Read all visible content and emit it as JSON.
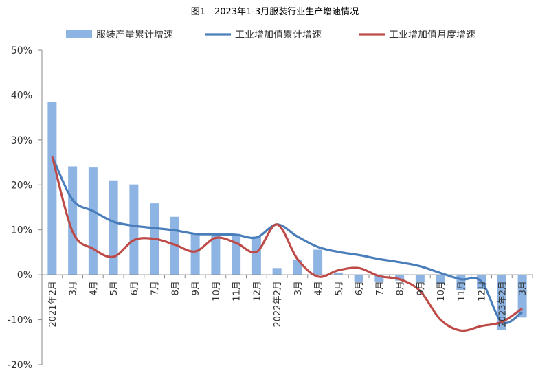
{
  "chart_data": {
    "type": "bar+line",
    "title": "图1　2023年1-3月服装行业生产增速情况",
    "categories": [
      "2021年2月",
      "3月",
      "4月",
      "5月",
      "6月",
      "7月",
      "8月",
      "9月",
      "10月",
      "11月",
      "12月",
      "2022年2月",
      "3月",
      "4月",
      "5月",
      "6月",
      "7月",
      "8月",
      "9月",
      "10月",
      "11月",
      "12月",
      "2023年2月",
      "3月"
    ],
    "series": [
      {
        "name": "服装产量累计增速",
        "type": "bar",
        "color": "#8EB4E3",
        "values": [
          38.5,
          24.1,
          24.0,
          21.0,
          20.1,
          15.9,
          12.9,
          9.2,
          9.0,
          9.1,
          8.5,
          1.5,
          3.4,
          5.6,
          0.5,
          -1.5,
          -1.5,
          -1.3,
          -1.7,
          -2.1,
          -3.4,
          -3.2,
          -12.3,
          -9.5
        ]
      },
      {
        "name": "工业增加值累计增速",
        "type": "line",
        "color": "#4A7EBB",
        "values": [
          26.4,
          16.7,
          14.2,
          11.8,
          10.9,
          10.4,
          9.9,
          9.1,
          9.0,
          8.9,
          8.3,
          11.2,
          8.5,
          6.2,
          5.1,
          4.4,
          3.5,
          2.8,
          1.9,
          0.4,
          -1.0,
          -1.5,
          -10.5,
          -8.3
        ]
      },
      {
        "name": "工业增加值月度增速",
        "type": "line",
        "color": "#BE4B48",
        "values": [
          26.4,
          9.6,
          5.8,
          4.0,
          7.7,
          8.0,
          6.7,
          5.2,
          8.2,
          7.1,
          5.1,
          11.2,
          3.5,
          -0.4,
          1.0,
          1.5,
          -0.3,
          -1.0,
          -3.6,
          -10.0,
          -12.4,
          -11.4,
          -10.5,
          -7.5
        ]
      }
    ],
    "yticks": [
      "50%",
      "40%",
      "30%",
      "20%",
      "10%",
      "0%",
      "-10%",
      "-20%"
    ],
    "ylim": [
      -20,
      50
    ],
    "grid": false,
    "legend": "top"
  }
}
